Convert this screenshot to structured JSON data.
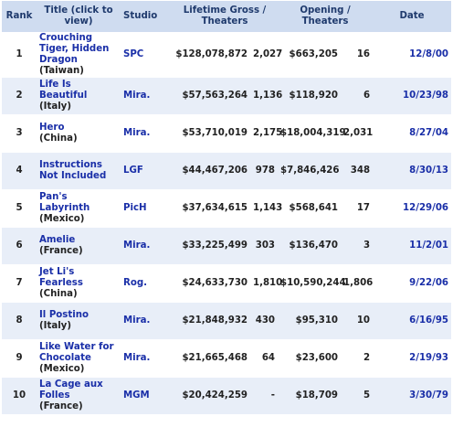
{
  "headers": {
    "rank": "Rank",
    "title": "Title (click to view)",
    "studio": "Studio",
    "lifetime": "Lifetime Gross / Theaters",
    "opening": "Opening / Theaters",
    "date": "Date"
  },
  "rows": [
    {
      "rank": "1",
      "title": "Crouching Tiger, Hidden Dragon",
      "country": "(Taiwan)",
      "studio": "SPC",
      "gross": "$128,078,872",
      "theaters": "2,027",
      "opening": "$663,205",
      "open_theaters": "16",
      "date": "12/8/00"
    },
    {
      "rank": "2",
      "title": "Life Is Beautiful",
      "country": "(Italy)",
      "studio": "Mira.",
      "gross": "$57,563,264",
      "theaters": "1,136",
      "opening": "$118,920",
      "open_theaters": "6",
      "date": "10/23/98"
    },
    {
      "rank": "3",
      "title": "Hero",
      "country": "(China)",
      "studio": "Mira.",
      "gross": "$53,710,019",
      "theaters": "2,175",
      "opening": "$18,004,319",
      "open_theaters": "2,031",
      "date": "8/27/04"
    },
    {
      "rank": "4",
      "title": "Instructions Not Included",
      "country": "",
      "studio": "LGF",
      "gross": "$44,467,206",
      "theaters": "978",
      "opening": "$7,846,426",
      "open_theaters": "348",
      "date": "8/30/13"
    },
    {
      "rank": "5",
      "title": "Pan's Labyrinth",
      "country": "(Mexico)",
      "studio": "PicH",
      "gross": "$37,634,615",
      "theaters": "1,143",
      "opening": "$568,641",
      "open_theaters": "17",
      "date": "12/29/06"
    },
    {
      "rank": "6",
      "title": "Amelie",
      "country": "(France)",
      "studio": "Mira.",
      "gross": "$33,225,499",
      "theaters": "303",
      "opening": "$136,470",
      "open_theaters": "3",
      "date": "11/2/01"
    },
    {
      "rank": "7",
      "title": "Jet Li's Fearless",
      "country": "(China)",
      "studio": "Rog.",
      "gross": "$24,633,730",
      "theaters": "1,810",
      "opening": "$10,590,244",
      "open_theaters": "1,806",
      "date": "9/22/06"
    },
    {
      "rank": "8",
      "title": "Il Postino",
      "country": "(Italy)",
      "studio": "Mira.",
      "gross": "$21,848,932",
      "theaters": "430",
      "opening": "$95,310",
      "open_theaters": "10",
      "date": "6/16/95"
    },
    {
      "rank": "9",
      "title": "Like Water for Chocolate",
      "country": "(Mexico)",
      "studio": "Mira.",
      "gross": "$21,665,468",
      "theaters": "64",
      "opening": "$23,600",
      "open_theaters": "2",
      "date": "2/19/93"
    },
    {
      "rank": "10",
      "title": "La Cage aux Folles",
      "country": "(France)",
      "studio": "MGM",
      "gross": "$20,424,259",
      "theaters": "-",
      "opening": "$18,709",
      "open_theaters": "5",
      "date": "3/30/79"
    }
  ],
  "colors": {
    "header_bg": "#cfdcf0",
    "row_alt_bg": "#e8eef8",
    "link": "#1a2fa8"
  }
}
